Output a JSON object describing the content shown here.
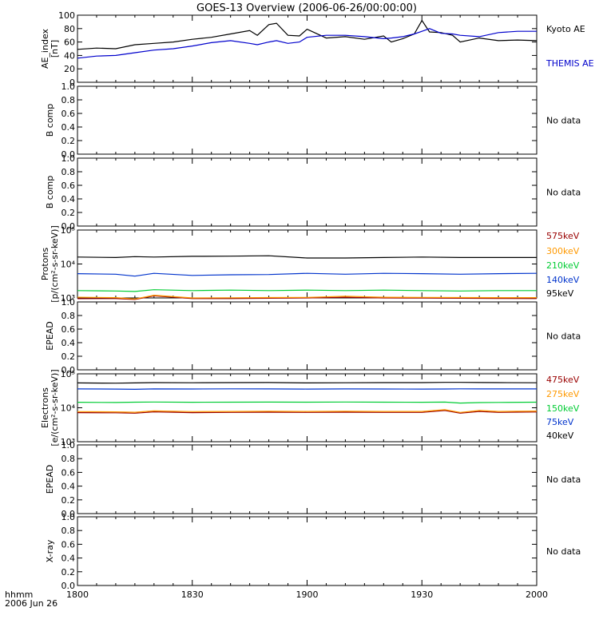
{
  "title": "GOES-13 Overview (2006-06-26/00:00:00)",
  "time_axis": {
    "unit_label": "hhmm",
    "date_label": "2006 Jun 26",
    "ticks": [
      "1800",
      "1830",
      "1900",
      "1930",
      "2000"
    ]
  },
  "no_data_text": "No data",
  "chart_data": [
    {
      "id": "ae",
      "type": "line",
      "ylabel": [
        "AE_index",
        "[nT]"
      ],
      "yscale": "linear",
      "ylim": [
        0,
        100
      ],
      "yticks": [
        0,
        20,
        40,
        60,
        80,
        100
      ],
      "yticklabels": [
        "0",
        "20",
        "40",
        "60",
        "80",
        "100"
      ],
      "x": [
        "18:00",
        "18:05",
        "18:10",
        "18:15",
        "18:20",
        "18:25",
        "18:30",
        "18:35",
        "18:40",
        "18:45",
        "18:47",
        "18:50",
        "18:52",
        "18:55",
        "18:58",
        "19:00",
        "19:05",
        "19:10",
        "19:15",
        "19:20",
        "19:22",
        "19:25",
        "19:28",
        "19:30",
        "19:32",
        "19:35",
        "19:38",
        "19:40",
        "19:45",
        "19:50",
        "19:55",
        "20:00"
      ],
      "series": [
        {
          "name": "Kyoto AE",
          "color": "#000000",
          "values": [
            49,
            51,
            50,
            56,
            58,
            60,
            64,
            67,
            72,
            77,
            70,
            86,
            88,
            70,
            69,
            79,
            66,
            68,
            64,
            69,
            60,
            65,
            72,
            92,
            75,
            74,
            70,
            60,
            66,
            62,
            63,
            62
          ]
        },
        {
          "name": "THEMIS AE",
          "color": "#0000cc",
          "values": [
            36,
            39,
            40,
            44,
            48,
            50,
            54,
            59,
            62,
            58,
            56,
            60,
            62,
            58,
            60,
            67,
            70,
            70,
            68,
            65,
            66,
            68,
            72,
            76,
            80,
            73,
            72,
            70,
            68,
            74,
            76,
            76
          ]
        }
      ]
    },
    {
      "id": "bcomp1",
      "type": "line",
      "ylabel": [
        "B comp"
      ],
      "yscale": "linear",
      "ylim": [
        0,
        1
      ],
      "yticks": [
        0,
        0.2,
        0.4,
        0.6,
        0.8,
        1.0
      ],
      "yticklabels": [
        "0.0",
        "0.2",
        "0.4",
        "0.6",
        "0.8",
        "1.0"
      ],
      "no_data": true
    },
    {
      "id": "bcomp2",
      "type": "line",
      "ylabel": [
        "B comp"
      ],
      "yscale": "linear",
      "ylim": [
        0,
        1
      ],
      "yticks": [
        0,
        0.2,
        0.4,
        0.6,
        0.8,
        1.0
      ],
      "yticklabels": [
        "0.0",
        "0.2",
        "0.4",
        "0.6",
        "0.8",
        "1.0"
      ],
      "no_data": true
    },
    {
      "id": "protons",
      "type": "line",
      "ylabel": [
        "Protons",
        "[p/(cm²-s-sr-keV)]"
      ],
      "yscale": "log",
      "ylim": [
        1000,
        100000
      ],
      "yticks": [
        1000,
        10000,
        100000
      ],
      "yticklabels": [
        "10³",
        "10⁴",
        "10⁵"
      ],
      "x": [
        "18:00",
        "18:10",
        "18:15",
        "18:20",
        "18:30",
        "18:40",
        "18:50",
        "19:00",
        "19:10",
        "19:20",
        "19:30",
        "19:40",
        "19:50",
        "20:00"
      ],
      "series": [
        {
          "name": "575keV",
          "color": "#990000",
          "values": [
            950,
            960,
            900,
            1150,
            960,
            960,
            980,
            1000,
            1050,
            1000,
            990,
            980,
            970,
            960
          ]
        },
        {
          "name": "300keV",
          "color": "#ff9900",
          "values": [
            1050,
            1020,
            930,
            1200,
            1000,
            1010,
            1030,
            1040,
            1120,
            1050,
            1040,
            1030,
            1020,
            1020
          ]
        },
        {
          "name": "210keV",
          "color": "#00cc33",
          "values": [
            1650,
            1600,
            1550,
            1750,
            1650,
            1700,
            1650,
            1700,
            1650,
            1700,
            1650,
            1600,
            1650,
            1650
          ]
        },
        {
          "name": "140keV",
          "color": "#0033cc",
          "values": [
            5200,
            5000,
            4400,
            5300,
            4600,
            4800,
            4900,
            5300,
            5000,
            5300,
            5200,
            5000,
            5200,
            5300
          ]
        },
        {
          "name": "95keV",
          "color": "#000000",
          "values": [
            16000,
            15500,
            16500,
            16000,
            16800,
            17000,
            17500,
            15000,
            15000,
            15500,
            16000,
            15500,
            15500,
            15500
          ]
        }
      ]
    },
    {
      "id": "epead1",
      "type": "line",
      "ylabel": [
        "EPEAD"
      ],
      "yscale": "linear",
      "ylim": [
        0,
        1
      ],
      "yticks": [
        0,
        0.2,
        0.4,
        0.6,
        0.8,
        1.0
      ],
      "yticklabels": [
        "0.0",
        "0.2",
        "0.4",
        "0.6",
        "0.8",
        "1.0"
      ],
      "no_data": true
    },
    {
      "id": "electrons",
      "type": "line",
      "ylabel": [
        "Electrons",
        "[e/(cm²-s-sr-keV)]"
      ],
      "yscale": "log",
      "ylim": [
        1000,
        100000
      ],
      "yticks": [
        1000,
        10000,
        100000
      ],
      "yticklabels": [
        "10³",
        "10⁴",
        "10⁵"
      ],
      "x": [
        "18:00",
        "18:10",
        "18:15",
        "18:20",
        "18:30",
        "18:40",
        "18:50",
        "19:00",
        "19:10",
        "19:20",
        "19:30",
        "19:36",
        "19:40",
        "19:45",
        "19:50",
        "20:00"
      ],
      "series": [
        {
          "name": "475keV",
          "color": "#990000",
          "values": [
            7200,
            7100,
            6900,
            7600,
            7200,
            7300,
            7400,
            7300,
            7400,
            7300,
            7300,
            8300,
            6900,
            7800,
            7300,
            7500
          ]
        },
        {
          "name": "275keV",
          "color": "#ff9900",
          "values": [
            7700,
            7600,
            7400,
            8100,
            7700,
            7800,
            7900,
            7800,
            7900,
            7800,
            7800,
            8800,
            7300,
            8300,
            7800,
            8000
          ]
        },
        {
          "name": "150keV",
          "color": "#00cc33",
          "values": [
            14500,
            14300,
            14600,
            14800,
            14500,
            14600,
            14700,
            14600,
            14800,
            14600,
            14500,
            14700,
            13800,
            14200,
            14400,
            14600
          ]
        },
        {
          "name": "75keV",
          "color": "#0033cc",
          "values": [
            36000,
            35500,
            35000,
            36000,
            35800,
            36200,
            36000,
            35500,
            36000,
            35800,
            35500,
            35800,
            36200,
            36000,
            36000,
            36000
          ]
        },
        {
          "name": "40keV",
          "color": "#000000",
          "values": [
            54000,
            53000,
            54000,
            55000,
            54500,
            55000,
            55500,
            54000,
            54500,
            55000,
            55000,
            56000,
            56000,
            55500,
            55000,
            54500
          ]
        }
      ]
    },
    {
      "id": "epead2",
      "type": "line",
      "ylabel": [
        "EPEAD"
      ],
      "yscale": "linear",
      "ylim": [
        0,
        1
      ],
      "yticks": [
        0,
        0.2,
        0.4,
        0.6,
        0.8,
        1.0
      ],
      "yticklabels": [
        "0.0",
        "0.2",
        "0.4",
        "0.6",
        "0.8",
        "1.0"
      ],
      "no_data": true
    },
    {
      "id": "xray",
      "type": "line",
      "ylabel": [
        "X-ray"
      ],
      "yscale": "linear",
      "ylim": [
        0,
        1
      ],
      "yticks": [
        0,
        0.2,
        0.4,
        0.6,
        0.8,
        1.0
      ],
      "yticklabels": [
        "0.0",
        "0.2",
        "0.4",
        "0.6",
        "0.8",
        "1.0"
      ],
      "no_data": true
    }
  ]
}
